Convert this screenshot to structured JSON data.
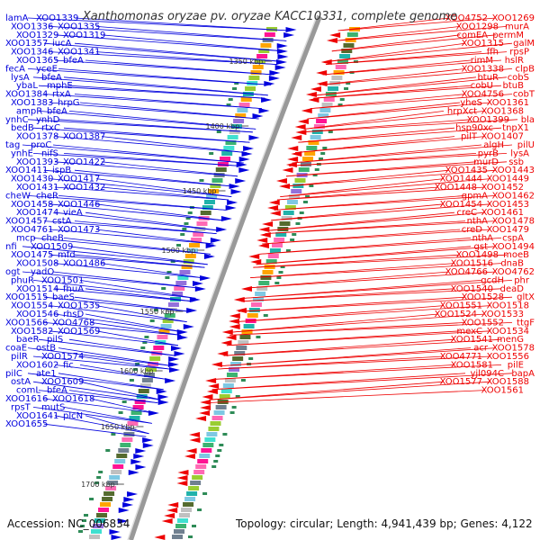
{
  "title": "Xanthomonas oryzae pv. oryzae KACC10331, complete genome",
  "footer": {
    "accession": "Accession: NC_006834",
    "stats": "Topology: circular; Length: 4,941,439 bp; Genes: 4,122"
  },
  "colors": {
    "forward": "#0000dd",
    "reverse": "#ee0000",
    "backbone": "#888888"
  },
  "kbp_ticks": [
    {
      "label": "1350 kbp"
    },
    {
      "label": "1400 kbp"
    },
    {
      "label": "1450 kbp"
    },
    {
      "label": "1500 kbp"
    },
    {
      "label": "1550 kbp"
    },
    {
      "label": "1600 kbp"
    },
    {
      "label": "1650 kbp"
    },
    {
      "label": "1700 kbp"
    }
  ],
  "left_labels": [
    "lamA",
    "XOO1339",
    "XOO1336",
    "XOO1335",
    "XOO1329",
    "XOO1319",
    "XOO1357",
    "iucA",
    "XOO1346",
    "XOO1341",
    "XOO1365",
    "bfeA",
    "fecA",
    "yceE",
    "lysA",
    "bfeA",
    "ybaL",
    "mphE",
    "XOO1384",
    "rtxA",
    "XOO1383",
    "hrpG",
    "ampR",
    "bfeA",
    "ynhC",
    "ynhD",
    "bedB",
    "rtxC",
    "XOO1378",
    "XOO1387",
    "tag",
    "proC",
    "ynhE",
    "nifS",
    "XOO1393",
    "XOO1422",
    "XOO1411",
    "ispB",
    "XOO1430",
    "XOO1417",
    "XOO1431",
    "XOO1432",
    "cheW",
    "cheR",
    "XOO1458",
    "XOO1446",
    "XOO1474",
    "vieA",
    "XOO1457",
    "cstA",
    "XOO4761",
    "XOO1473",
    "mcp",
    "cheB",
    "nfi",
    "XOO1509",
    "XOO1475",
    "mfd",
    "XOO1508",
    "XOO1486",
    "ogt",
    "yadO",
    "phuR",
    "XOO1501",
    "XOO1514",
    "fhuA",
    "XOO1515",
    "baeS",
    "XOO1554",
    "XOO1535",
    "XOO1546",
    "rhsD",
    "XOO1566",
    "XOO4768",
    "XOO1582",
    "XOO1569",
    "baeR",
    "pilS",
    "coaE",
    "ostB",
    "pilR",
    "XOO1574",
    "XOO1602",
    "fic",
    "pilC",
    "ate1",
    "ostA",
    "XOO1609",
    "comL",
    "bfeA",
    "XOO1616",
    "XOO1618",
    "rpsT",
    "mutS",
    "XOO1641",
    "plcN",
    "XOO1655"
  ],
  "right_labels": [
    "XOO1269",
    "XOO4752",
    "murA",
    "XOO1298",
    "permM",
    "comEA",
    "galM",
    "XOO1315",
    "rpsP",
    "ffh",
    "hslR",
    "rimM",
    "clpB",
    "XOO1338",
    "cobS",
    "btuR",
    "btuB",
    "cobU",
    "cobT",
    "XOO4756",
    "XOO1361",
    "yheS",
    "XOO1368",
    "hrpXct",
    "bla",
    "XOO1399",
    "tnpX1",
    "hsp90xc",
    "XOO1407",
    "pilT",
    "pilU",
    "algH",
    "lysA",
    "pyrB",
    "ssb",
    "murD",
    "XOO1443",
    "XOO1435",
    "XOO1449",
    "XOO1444",
    "XOO1452",
    "XOO1448",
    "XOO1462",
    "gpmA",
    "XOO1453",
    "XOO1454",
    "XOO1461",
    "creC",
    "XOO1478",
    "nthA",
    "XOO1479",
    "creD",
    "cspA",
    "nthA",
    "XOO1494",
    "gst",
    "moeB",
    "XOO1498",
    "dnaB",
    "XOO1516",
    "XOO4762",
    "XOO4766",
    "phr",
    "gcdH",
    "deaD",
    "XOO1540",
    "gltX",
    "XOO1528",
    "XOO1518",
    "XOO1551",
    "XOO1533",
    "XOO1524",
    "ttgF",
    "XOO1552",
    "XOO1534",
    "mexC",
    "menG",
    "XOO1541",
    "XOO1578",
    "acr",
    "XOO1556",
    "XOO4771",
    "pilE",
    "XOO1581",
    "bapA",
    "yjl094C",
    "XOO1588",
    "XOO1577",
    "XOO1561"
  ]
}
